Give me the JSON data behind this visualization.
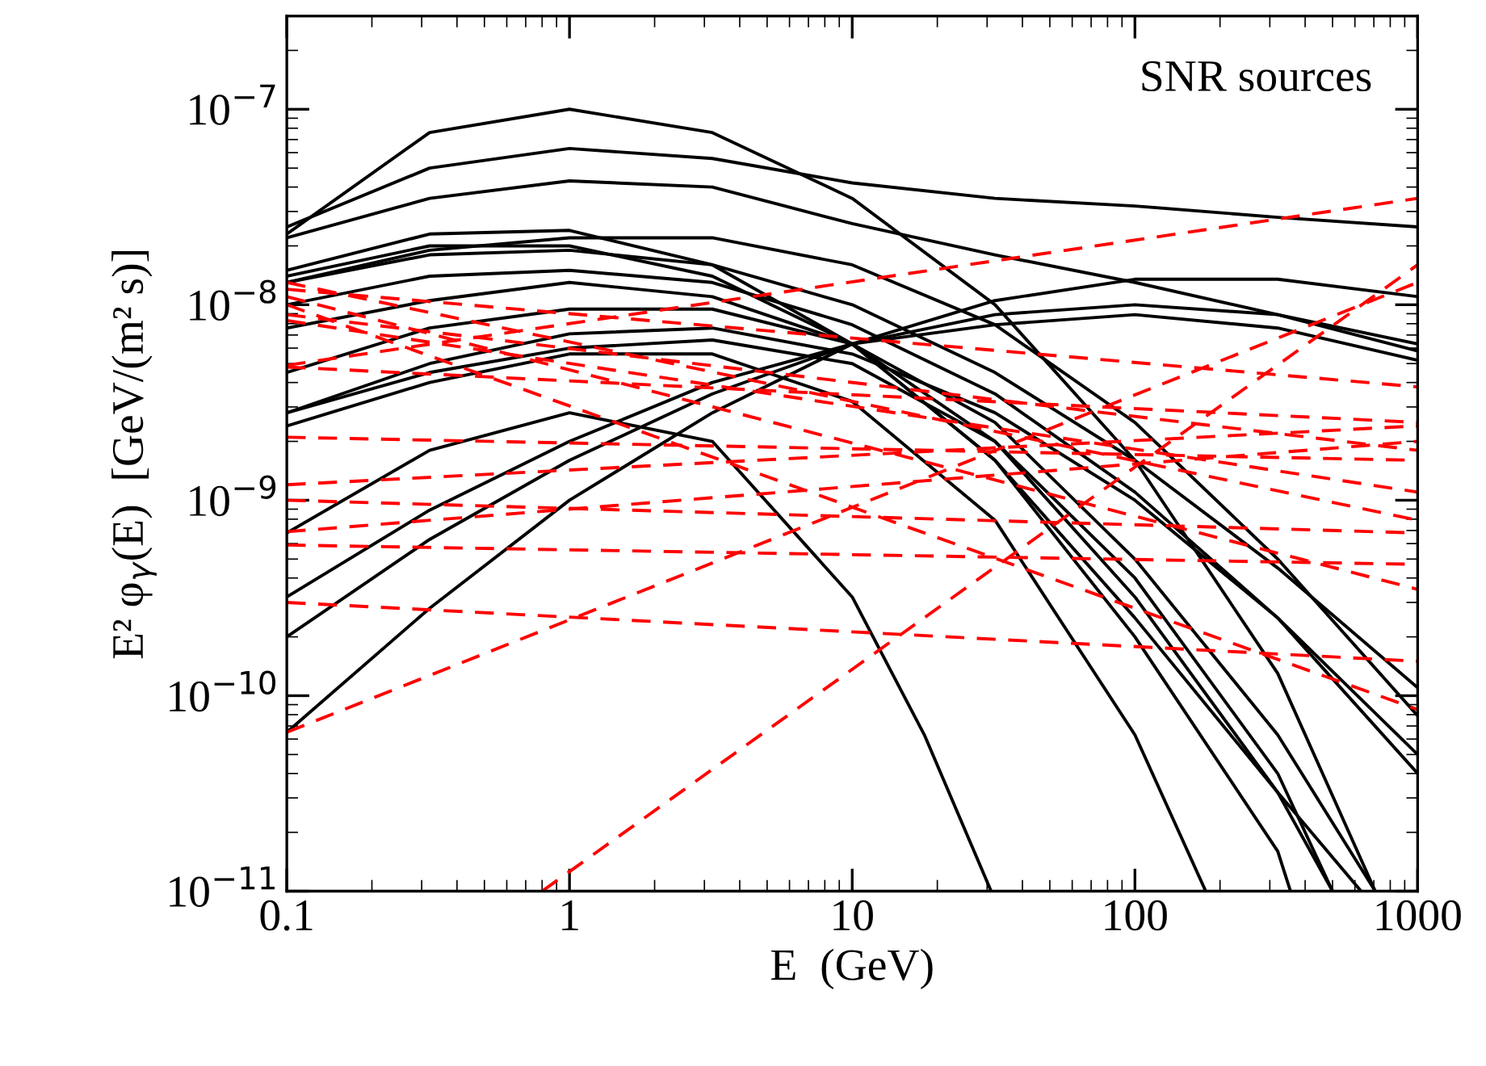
{
  "chart_data": {
    "type": "line",
    "xlabel": "E  (GeV)",
    "ylabel": "E² φ$_{γ}$(E)  [GeV/(m² s)]",
    "annotations": [
      "SNR sources"
    ],
    "log": "xy",
    "marker": "none",
    "xlim": [
      0.1,
      1000
    ],
    "xticks": [
      0.1,
      1,
      10,
      100,
      1000
    ],
    "ylim": [
      1e-11,
      3e-07
    ],
    "yticks": [
      {
        "value": 1e-11,
        "label": "10$^{−11}$"
      },
      {
        "value": 1e-10,
        "label": "10$^{−10}$"
      },
      {
        "value": 1e-09,
        "label": "10$^{−9}$"
      },
      {
        "value": 1e-08,
        "label": "10$^{−8}$"
      },
      {
        "value": 1e-07,
        "label": "10$^{−7}$"
      }
    ],
    "series": [
      {
        "color": "#000000",
        "line_style": "solid",
        "x": [
          0.1,
          0.32,
          1,
          3.2,
          10,
          32,
          100,
          320,
          708
        ],
        "values": [
          2.3e-08,
          7.6e-08,
          1e-07,
          7.6e-08,
          3.5e-08,
          1e-08,
          1.6e-09,
          1.3e-10,
          1e-11
        ]
      },
      {
        "color": "#000000",
        "line_style": "solid",
        "x": [
          0.1,
          0.32,
          1,
          3.2,
          10,
          32,
          100,
          320,
          1000
        ],
        "values": [
          2.5e-08,
          5e-08,
          6.3e-08,
          5.6e-08,
          4.2e-08,
          3.5e-08,
          3.2e-08,
          2.8e-08,
          2.5e-08
        ]
      },
      {
        "color": "#000000",
        "line_style": "solid",
        "x": [
          0.1,
          0.32,
          1,
          3.2,
          10,
          32,
          100,
          320,
          1000
        ],
        "values": [
          2.2e-08,
          3.5e-08,
          4.3e-08,
          4e-08,
          2.6e-08,
          1.8e-08,
          1.3e-08,
          8.9e-09,
          5.8e-09
        ]
      },
      {
        "color": "#000000",
        "line_style": "solid",
        "x": [
          0.1,
          0.32,
          1,
          3.2,
          10,
          32,
          100,
          320,
          631
        ],
        "values": [
          1.5e-08,
          2.3e-08,
          2.4e-08,
          1.6e-08,
          6.3e-09,
          1.6e-09,
          2.5e-10,
          3.2e-11,
          1e-11
        ]
      },
      {
        "color": "#000000",
        "line_style": "solid",
        "x": [
          0.1,
          0.32,
          1,
          3.2,
          10,
          32,
          100,
          320,
          1000
        ],
        "values": [
          1.3e-08,
          1.9e-08,
          2.2e-08,
          2.2e-08,
          1.6e-08,
          7.9e-09,
          2.5e-09,
          5e-10,
          7.9e-11
        ]
      },
      {
        "color": "#000000",
        "line_style": "solid",
        "x": [
          0.1,
          0.32,
          1,
          3.2,
          10,
          32,
          100,
          320,
          355
        ],
        "values": [
          1.4e-08,
          2e-08,
          2e-08,
          1.4e-08,
          6.3e-09,
          1.6e-09,
          2e-10,
          1.6e-11,
          1e-11
        ]
      },
      {
        "color": "#000000",
        "line_style": "solid",
        "x": [
          0.1,
          0.32,
          1,
          3.2,
          10,
          32,
          100,
          320,
          500
        ],
        "values": [
          7.6e-09,
          1.05e-08,
          1.3e-08,
          1.1e-08,
          6.3e-09,
          2e-09,
          3.2e-10,
          3.2e-11,
          1e-11
        ]
      },
      {
        "color": "#000000",
        "line_style": "solid",
        "x": [
          0.1,
          0.32,
          1,
          3.2,
          10,
          32,
          100,
          320,
          708
        ],
        "values": [
          4.5e-09,
          7.6e-09,
          9.5e-09,
          9.5e-09,
          6.3e-09,
          2.5e-09,
          5e-10,
          6.3e-11,
          1e-11
        ]
      },
      {
        "color": "#000000",
        "line_style": "solid",
        "x": [
          0.1,
          0.32,
          1,
          3.2,
          10,
          32,
          100,
          320,
          500
        ],
        "values": [
          2.8e-09,
          4.5e-09,
          6e-09,
          6.6e-09,
          5e-09,
          2e-09,
          4e-10,
          4e-11,
          1e-11
        ]
      },
      {
        "color": "#000000",
        "line_style": "solid",
        "x": [
          0.1,
          0.32,
          1,
          3.2,
          10,
          32,
          100,
          178
        ],
        "values": [
          2.4e-09,
          4e-09,
          5.6e-09,
          5.6e-09,
          3.2e-09,
          7.9e-10,
          6.3e-11,
          1e-11
        ]
      },
      {
        "color": "#000000",
        "line_style": "solid",
        "x": [
          0.1,
          0.32,
          1,
          3.2,
          10,
          32,
          100,
          320,
          1000
        ],
        "values": [
          6.5e-11,
          2.8e-10,
          1e-09,
          2.8e-09,
          6.3e-09,
          1.05e-08,
          1.35e-08,
          1.35e-08,
          1.1e-08
        ]
      },
      {
        "color": "#000000",
        "line_style": "solid",
        "x": [
          0.1,
          0.32,
          1,
          3.2,
          10,
          32,
          100,
          320,
          1000
        ],
        "values": [
          2e-10,
          6.3e-10,
          1.6e-09,
          3.5e-09,
          6.3e-09,
          8.9e-09,
          1e-08,
          8.9e-09,
          6.3e-09
        ]
      },
      {
        "color": "#000000",
        "line_style": "solid",
        "x": [
          0.1,
          0.32,
          1,
          3.2,
          10,
          32,
          100,
          320,
          1000
        ],
        "values": [
          3.2e-10,
          8.9e-10,
          2e-09,
          4e-09,
          6.3e-09,
          7.9e-09,
          8.9e-09,
          7.6e-09,
          5.2e-09
        ]
      },
      {
        "color": "#000000",
        "line_style": "solid",
        "x": [
          0.1,
          0.32,
          1,
          3.2,
          10,
          18,
          31
        ],
        "values": [
          6.8e-10,
          1.8e-09,
          2.8e-09,
          2e-09,
          3.2e-10,
          6.3e-11,
          1e-11
        ]
      },
      {
        "color": "#000000",
        "line_style": "solid",
        "x": [
          0.1,
          0.32,
          1,
          3.2,
          10,
          32,
          100,
          320,
          1000
        ],
        "values": [
          2.8e-09,
          5e-09,
          7.1e-09,
          7.6e-09,
          5.6e-09,
          2.8e-09,
          1e-09,
          2.5e-10,
          5e-11
        ]
      },
      {
        "color": "#000000",
        "line_style": "solid",
        "x": [
          0.1,
          0.32,
          1,
          3.2,
          10,
          32,
          100,
          320,
          1000
        ],
        "values": [
          1e-08,
          1.4e-08,
          1.5e-08,
          1.3e-08,
          7.9e-09,
          3.5e-09,
          1.1e-09,
          2.5e-10,
          4e-11
        ]
      },
      {
        "color": "#000000",
        "line_style": "solid",
        "x": [
          0.1,
          0.32,
          1,
          3.2,
          10,
          32,
          100,
          320,
          1000
        ],
        "values": [
          1.3e-08,
          1.8e-08,
          1.9e-08,
          1.6e-08,
          1e-08,
          4.5e-09,
          1.6e-09,
          4.5e-10,
          1.1e-10
        ]
      },
      {
        "color": "#ff0000",
        "line_style": "dashed",
        "x": [
          0.1,
          1000
        ],
        "values": [
          4.9e-09,
          3.5e-08
        ]
      },
      {
        "color": "#ff0000",
        "line_style": "dashed",
        "x": [
          0.8,
          1000
        ],
        "values": [
          1e-11,
          1.6e-08
        ]
      },
      {
        "color": "#ff0000",
        "line_style": "dashed",
        "x": [
          0.1,
          1000
        ],
        "values": [
          6.5e-11,
          1.3e-08
        ]
      },
      {
        "color": "#ff0000",
        "line_style": "dashed",
        "x": [
          0.1,
          1000
        ],
        "values": [
          3e-10,
          1.5e-10
        ]
      },
      {
        "color": "#ff0000",
        "line_style": "dashed",
        "x": [
          0.1,
          1000
        ],
        "values": [
          5.9e-10,
          4.7e-10
        ]
      },
      {
        "color": "#ff0000",
        "line_style": "dashed",
        "x": [
          0.1,
          1000
        ],
        "values": [
          6.9e-10,
          2e-09
        ]
      },
      {
        "color": "#ff0000",
        "line_style": "dashed",
        "x": [
          0.1,
          1000
        ],
        "values": [
          1e-09,
          6.8e-10
        ]
      },
      {
        "color": "#ff0000",
        "line_style": "dashed",
        "x": [
          0.1,
          1000
        ],
        "values": [
          1.2e-09,
          2.4e-09
        ]
      },
      {
        "color": "#ff0000",
        "line_style": "dashed",
        "x": [
          0.1,
          1000
        ],
        "values": [
          2.1e-09,
          1.6e-09
        ]
      },
      {
        "color": "#ff0000",
        "line_style": "dashed",
        "x": [
          0.1,
          1000
        ],
        "values": [
          1.2e-08,
          3.8e-09
        ]
      },
      {
        "color": "#ff0000",
        "line_style": "dashed",
        "x": [
          0.1,
          1000
        ],
        "values": [
          1e-08,
          8.5e-11
        ]
      },
      {
        "color": "#ff0000",
        "line_style": "dashed",
        "x": [
          0.1,
          1000
        ],
        "values": [
          1.1e-08,
          3.5e-10
        ]
      },
      {
        "color": "#ff0000",
        "line_style": "dashed",
        "x": [
          0.1,
          1000
        ],
        "values": [
          8.9e-09,
          1.8e-09
        ]
      },
      {
        "color": "#ff0000",
        "line_style": "dashed",
        "x": [
          0.1,
          1000
        ],
        "values": [
          4.8e-09,
          2.5e-09
        ]
      },
      {
        "color": "#ff0000",
        "line_style": "dashed",
        "x": [
          0.1,
          1000
        ],
        "values": [
          1.3e-08,
          7.9e-10
        ]
      },
      {
        "color": "#ff0000",
        "line_style": "dashed",
        "x": [
          0.1,
          1000
        ],
        "values": [
          8.3e-09,
          1.1e-09
        ]
      }
    ]
  }
}
